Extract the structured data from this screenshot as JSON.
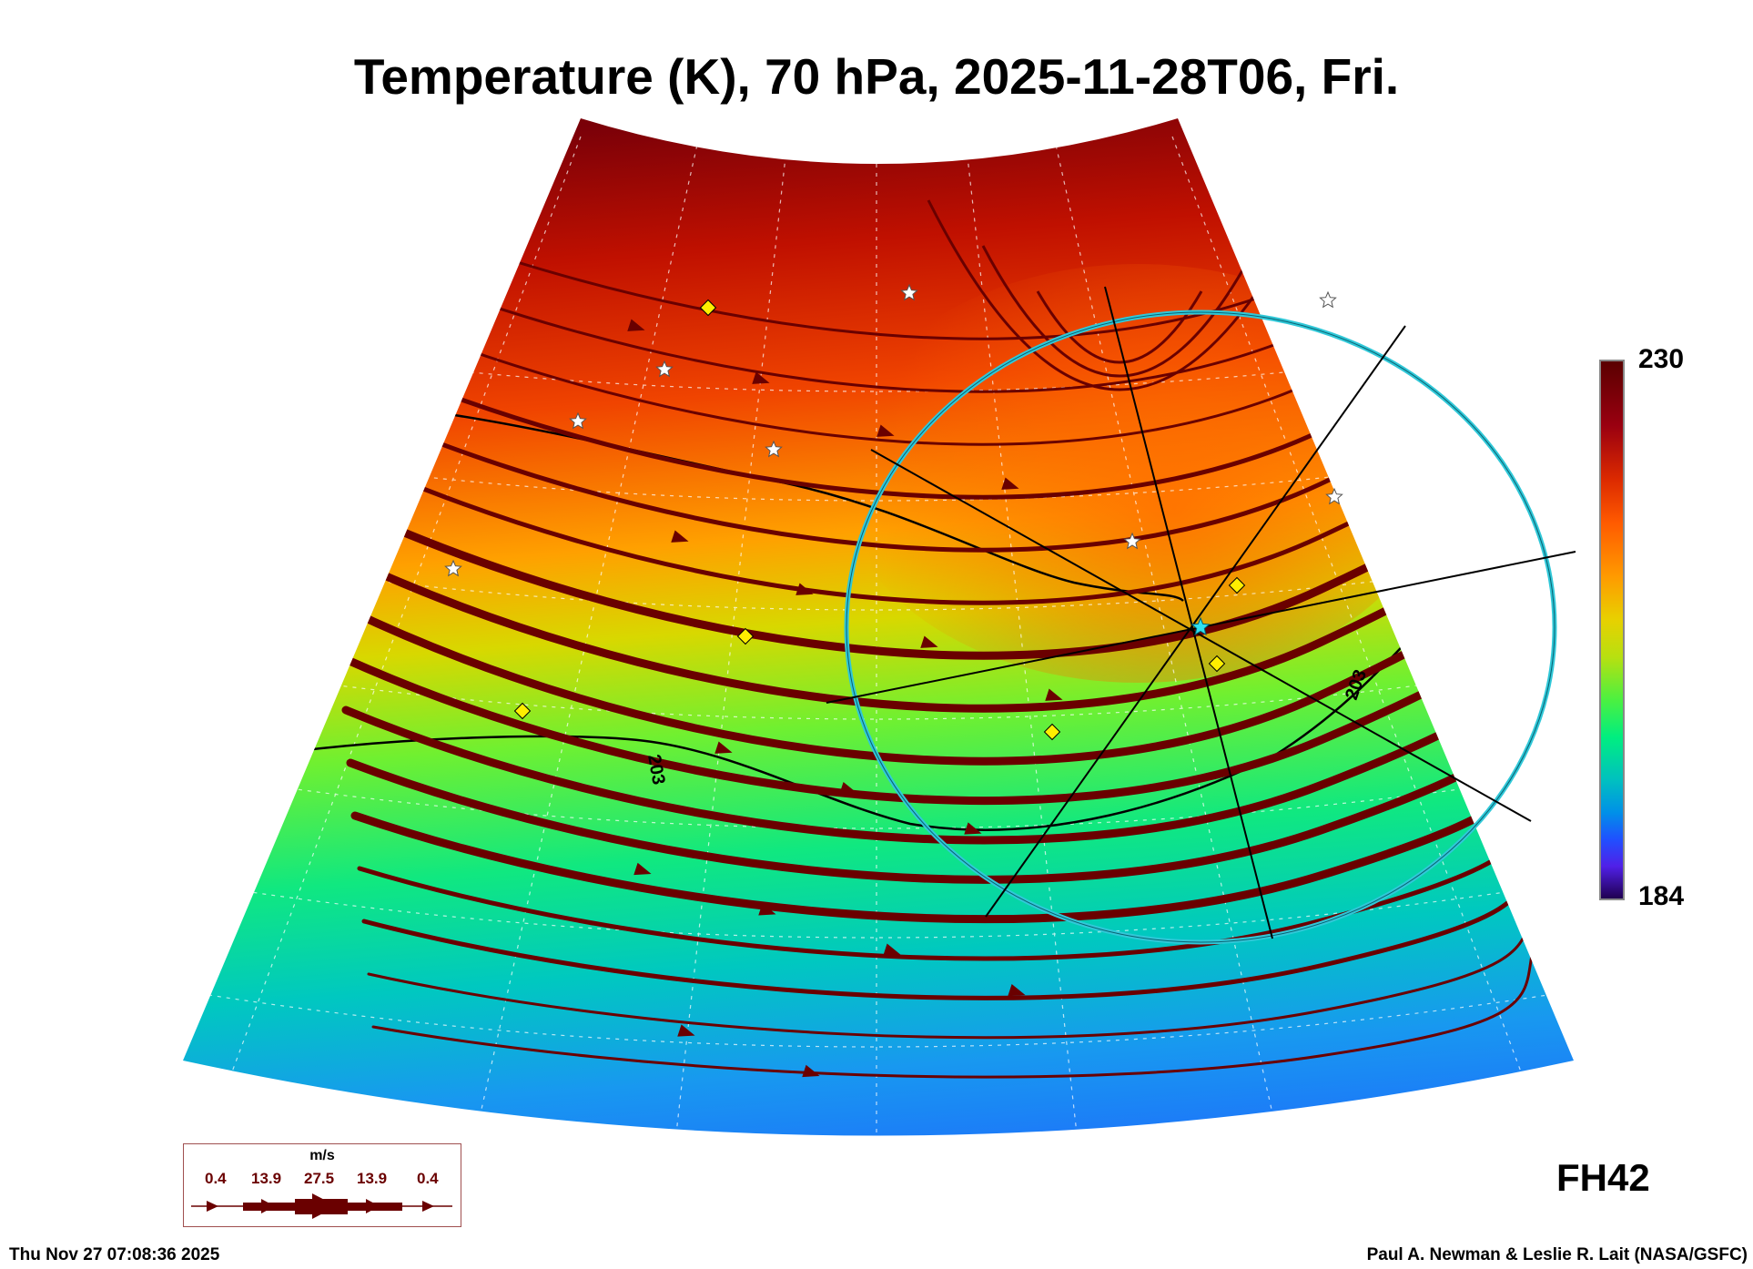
{
  "title": "Temperature (K), 70 hPa, 2025-11-28T06, Fri.",
  "colorbar": {
    "max": "230",
    "min": "184",
    "unit": "K"
  },
  "contour_label": "203",
  "contour_label2": "203",
  "legend": {
    "unit": "m/s",
    "values": [
      "0.4",
      "13.9",
      "27.5",
      "13.9",
      "0.4"
    ]
  },
  "forecast_hour": "FH42",
  "footer": {
    "timestamp": "Thu Nov 27 07:08:36 2025",
    "credit": "Paul A. Newman & Leslie R. Lait (NASA/GSFC)"
  },
  "colors": {
    "streamline": "#6a0000",
    "ring": "#30c8d8",
    "marker": "#ffee00"
  }
}
